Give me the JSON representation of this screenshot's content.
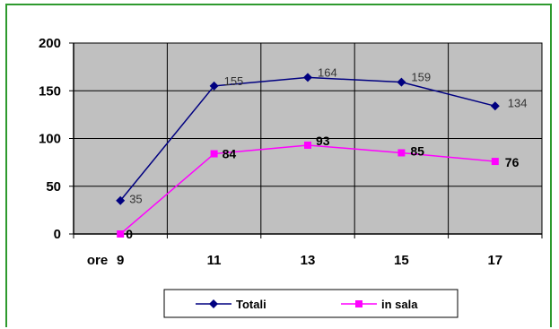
{
  "chart_data": {
    "type": "line",
    "x": [
      "9",
      "11",
      "13",
      "15",
      "17"
    ],
    "x_prefix": "ore",
    "ylim": [
      0,
      200
    ],
    "yticks": [
      0,
      50,
      100,
      150,
      200
    ],
    "grid": true,
    "legend_position": "bottom",
    "series": [
      {
        "name": "Totali",
        "values": [
          35,
          155,
          164,
          159,
          134
        ],
        "color": "#000080",
        "marker": "diamond"
      },
      {
        "name": "in sala",
        "values": [
          0,
          84,
          93,
          85,
          76
        ],
        "color": "#ff00ff",
        "marker": "square"
      }
    ],
    "colors": {
      "plot_bg": "#c0c0c0",
      "frame": "#2e9a2e",
      "grid": "#000000"
    }
  }
}
